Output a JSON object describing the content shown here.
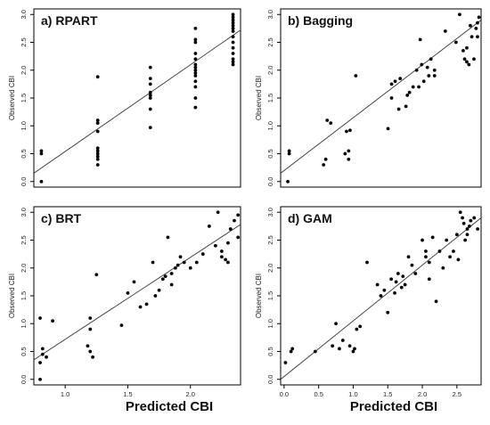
{
  "chart_data": [
    {
      "type": "scatter",
      "title": "a) RPART",
      "ylabel": "Observed CBI",
      "xlabel": "",
      "xlim": [
        -0.05,
        2.7
      ],
      "ylim": [
        -0.1,
        3.1
      ],
      "xticks": [],
      "yticks": [
        "0.0",
        "0.5",
        "1.0",
        "1.5",
        "2.0",
        "2.5",
        "3.0"
      ],
      "fit_line": {
        "x": [
          -0.05,
          2.7
        ],
        "y": [
          0.15,
          2.72
        ]
      },
      "x": [
        0.05,
        0.05,
        0.05,
        0.8,
        0.8,
        0.8,
        0.8,
        0.8,
        0.8,
        0.8,
        0.8,
        0.8,
        0.8,
        1.5,
        1.5,
        1.5,
        1.5,
        1.5,
        1.5,
        1.5,
        1.5,
        2.1,
        2.1,
        2.1,
        2.1,
        2.1,
        2.1,
        2.1,
        2.1,
        2.1,
        2.1,
        2.1,
        2.1,
        2.1,
        2.1,
        2.6,
        2.6,
        2.6,
        2.6,
        2.6,
        2.6,
        2.6,
        2.6,
        2.6,
        2.6,
        2.6,
        2.6,
        2.6,
        2.6
      ],
      "y": [
        0.0,
        0.5,
        0.55,
        0.3,
        0.4,
        0.5,
        0.55,
        0.6,
        0.9,
        1.05,
        1.1,
        1.88,
        0.45,
        0.97,
        1.3,
        1.5,
        1.55,
        1.6,
        1.75,
        1.85,
        2.05,
        1.33,
        1.5,
        1.7,
        1.8,
        1.9,
        1.95,
        2.0,
        2.05,
        2.1,
        2.2,
        2.3,
        2.5,
        2.55,
        2.75,
        2.1,
        2.15,
        2.2,
        2.3,
        2.4,
        2.5,
        2.6,
        2.7,
        2.75,
        2.8,
        2.85,
        2.9,
        2.95,
        3.0
      ]
    },
    {
      "type": "scatter",
      "title": "b) Bagging",
      "ylabel": "Observed CBI",
      "xlabel": "",
      "xlim": [
        -0.05,
        2.75
      ],
      "ylim": [
        -0.1,
        3.1
      ],
      "xticks": [],
      "yticks": [
        "0.0",
        "0.5",
        "1.0",
        "1.5",
        "2.0",
        "2.5",
        "3.0"
      ],
      "fit_line": {
        "x": [
          -0.05,
          2.75
        ],
        "y": [
          0.15,
          2.9
        ]
      },
      "x": [
        0.05,
        0.07,
        0.07,
        0.55,
        0.58,
        0.6,
        0.65,
        0.85,
        0.87,
        0.9,
        0.9,
        0.92,
        1.0,
        1.45,
        1.5,
        1.5,
        1.55,
        1.6,
        1.62,
        1.7,
        1.72,
        1.75,
        1.8,
        1.85,
        1.88,
        1.9,
        1.92,
        1.95,
        2.0,
        2.02,
        2.05,
        2.1,
        2.1,
        2.25,
        2.4,
        2.45,
        2.5,
        2.52,
        2.55,
        2.55,
        2.58,
        2.6,
        2.62,
        2.65,
        2.68,
        2.7,
        2.7,
        2.72
      ],
      "y": [
        0.0,
        0.5,
        0.55,
        0.3,
        0.4,
        1.1,
        1.05,
        0.5,
        0.9,
        0.55,
        0.4,
        0.92,
        1.9,
        0.95,
        1.5,
        1.75,
        1.8,
        1.3,
        1.85,
        1.35,
        1.55,
        1.6,
        1.7,
        2.0,
        1.7,
        2.55,
        2.1,
        1.8,
        2.05,
        1.9,
        2.2,
        2.0,
        1.9,
        2.7,
        2.5,
        3.0,
        2.35,
        2.2,
        2.4,
        2.15,
        2.1,
        2.8,
        2.6,
        2.2,
        2.75,
        2.85,
        2.6,
        2.95
      ]
    },
    {
      "type": "scatter",
      "title": "c) BRT",
      "ylabel": "Observed CBI",
      "xlabel": "",
      "xlim": [
        0.75,
        2.4
      ],
      "ylim": [
        -0.1,
        3.1
      ],
      "xticks": [
        "1.0",
        "1.5",
        "2.0"
      ],
      "yticks": [
        "0.0",
        "0.5",
        "1.0",
        "1.5",
        "2.0",
        "2.5",
        "3.0"
      ],
      "fit_line": {
        "x": [
          0.75,
          2.4
        ],
        "y": [
          0.35,
          2.78
        ]
      },
      "x": [
        0.8,
        0.8,
        0.82,
        0.82,
        0.8,
        0.85,
        0.9,
        1.18,
        1.2,
        1.2,
        1.22,
        1.25,
        1.2,
        1.45,
        1.5,
        1.55,
        1.6,
        1.65,
        1.7,
        1.72,
        1.75,
        1.78,
        1.8,
        1.82,
        1.85,
        1.85,
        1.88,
        1.9,
        1.92,
        1.95,
        2.0,
        2.05,
        2.1,
        2.15,
        2.2,
        2.22,
        2.25,
        2.25,
        2.28,
        2.3,
        2.3,
        2.32,
        2.35,
        2.38,
        2.38
      ],
      "y": [
        0.0,
        0.3,
        0.45,
        0.55,
        1.1,
        0.4,
        1.05,
        0.6,
        0.9,
        1.1,
        0.4,
        1.88,
        0.5,
        0.97,
        1.55,
        1.75,
        1.3,
        1.35,
        2.1,
        1.5,
        1.6,
        1.8,
        1.85,
        2.55,
        1.7,
        1.9,
        2.0,
        2.05,
        2.2,
        2.1,
        2.0,
        2.1,
        2.25,
        2.75,
        2.4,
        3.0,
        2.2,
        2.3,
        2.15,
        2.45,
        2.1,
        2.7,
        2.85,
        2.95,
        2.55
      ]
    },
    {
      "type": "scatter",
      "title": "d) GAM",
      "ylabel": "Observed CBI",
      "xlabel": "",
      "xlim": [
        -0.05,
        2.85
      ],
      "ylim": [
        -0.1,
        3.1
      ],
      "xticks": [
        "0.0",
        "0.5",
        "1.0",
        "1.5",
        "2.0",
        "2.5"
      ],
      "yticks": [
        "0.0",
        "0.5",
        "1.0",
        "1.5",
        "2.0",
        "2.5",
        "3.0"
      ],
      "fit_line": {
        "x": [
          -0.05,
          2.85
        ],
        "y": [
          0.0,
          2.9
        ]
      },
      "x": [
        0.02,
        0.1,
        0.12,
        0.45,
        0.7,
        0.75,
        0.8,
        0.85,
        0.95,
        1.0,
        1.02,
        1.05,
        1.1,
        1.2,
        1.35,
        1.4,
        1.45,
        1.5,
        1.55,
        1.6,
        1.62,
        1.65,
        1.7,
        1.72,
        1.75,
        1.8,
        1.85,
        1.9,
        2.0,
        2.05,
        2.05,
        2.1,
        2.1,
        2.15,
        2.2,
        2.25,
        2.3,
        2.35,
        2.4,
        2.45,
        2.5,
        2.52,
        2.55,
        2.58,
        2.6,
        2.62,
        2.65,
        2.65,
        2.68,
        2.7,
        2.75,
        2.8
      ],
      "y": [
        0.3,
        0.5,
        0.55,
        0.5,
        0.6,
        1.0,
        0.55,
        0.7,
        0.6,
        0.5,
        0.55,
        0.9,
        0.95,
        2.1,
        1.7,
        1.5,
        1.6,
        1.2,
        1.8,
        1.55,
        1.75,
        1.9,
        1.65,
        1.85,
        1.7,
        2.2,
        2.05,
        1.9,
        2.5,
        2.2,
        2.3,
        2.1,
        1.8,
        2.55,
        1.4,
        2.3,
        2.0,
        2.5,
        2.2,
        2.3,
        2.6,
        2.15,
        3.0,
        2.9,
        2.8,
        2.5,
        2.6,
        2.7,
        2.75,
        2.85,
        2.9,
        2.7
      ]
    }
  ],
  "bottom_labels": {
    "left": "Predicted CBI",
    "right": "Predicted CBI"
  }
}
